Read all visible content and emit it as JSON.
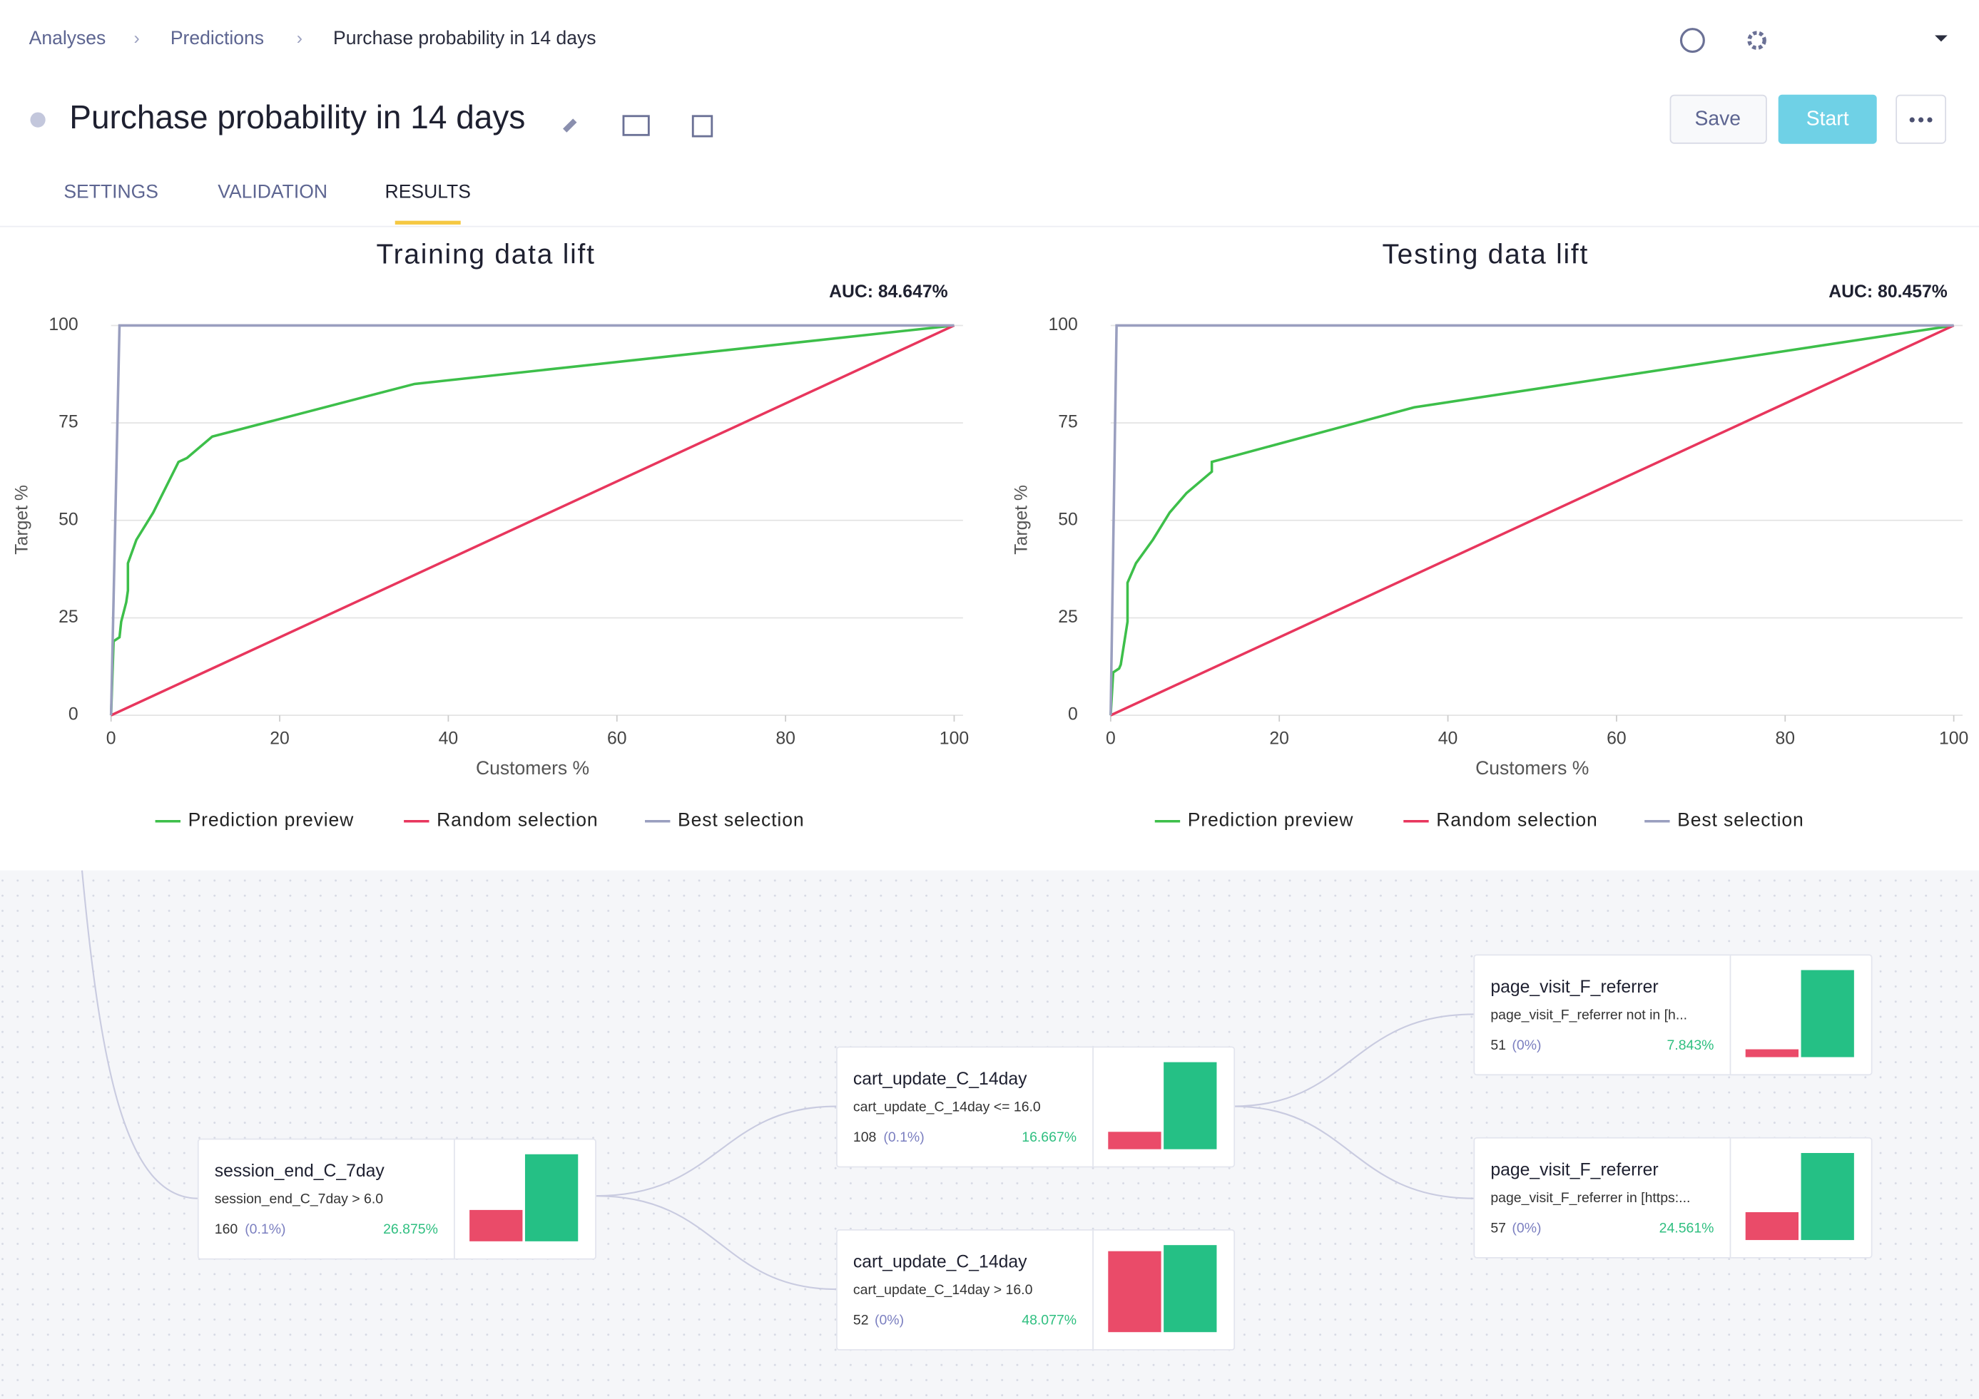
{
  "header": {
    "breadcrumbs": [
      "Analyses",
      "Predictions",
      "Purchase probability in 14 days"
    ],
    "title": "Purchase probability in 14 days",
    "buttons": {
      "save": "Save",
      "start": "Start"
    },
    "tabs": [
      "SETTINGS",
      "VALIDATION",
      "RESULTS"
    ]
  },
  "chart_data": [
    {
      "type": "line",
      "title": "Training data lift",
      "annotation": "AUC: 84.647%",
      "x_label": "Customers %",
      "y_label": "Target %",
      "xlim": [
        0,
        100
      ],
      "ylim": [
        0,
        100
      ],
      "xticks": [
        0,
        20,
        40,
        60,
        80,
        100
      ],
      "yticks": [
        0,
        25,
        50,
        75,
        100
      ],
      "grid": true,
      "series": [
        {
          "name": "Prediction preview",
          "color": "#3dbf4a",
          "x": [
            0,
            0.3,
            1,
            1.2,
            1.8,
            2,
            2,
            3,
            5,
            8,
            9,
            12,
            36,
            100
          ],
          "values": [
            0,
            19,
            20,
            24,
            29,
            32,
            39,
            45,
            52,
            65,
            66,
            71.5,
            85,
            100
          ]
        },
        {
          "name": "Random selection",
          "color": "#e8365d",
          "x": [
            0,
            100
          ],
          "values": [
            0,
            100
          ]
        },
        {
          "name": "Best selection",
          "color": "#9a9fbf",
          "x": [
            0,
            1,
            100
          ],
          "values": [
            0,
            100,
            100
          ]
        }
      ]
    },
    {
      "type": "line",
      "title": "Testing data lift",
      "annotation": "AUC: 80.457%",
      "x_label": "Customers %",
      "y_label": "Target %",
      "xlim": [
        0,
        100
      ],
      "ylim": [
        0,
        100
      ],
      "xticks": [
        0,
        20,
        40,
        60,
        80,
        100
      ],
      "yticks": [
        0,
        25,
        50,
        75,
        100
      ],
      "grid": true,
      "series": [
        {
          "name": "Prediction preview",
          "color": "#3dbf4a",
          "x": [
            0,
            0.3,
            1,
            1.2,
            2,
            2,
            3,
            5,
            7,
            9,
            12,
            12,
            36,
            100
          ],
          "values": [
            0,
            11,
            12,
            13,
            24,
            34,
            39,
            45,
            52,
            57,
            62.5,
            65,
            79,
            100
          ]
        },
        {
          "name": "Random selection",
          "color": "#e8365d",
          "x": [
            0,
            100
          ],
          "values": [
            0,
            100
          ]
        },
        {
          "name": "Best selection",
          "color": "#9a9fbf",
          "x": [
            0,
            0.7,
            100
          ],
          "values": [
            0,
            100,
            100
          ]
        }
      ]
    }
  ],
  "tree": {
    "nodes": [
      {
        "title": "session_end_C_7day",
        "condition": "session_end_C_7day > 6.0",
        "count": "160",
        "share": "(0.1%)",
        "rate": "26.875%",
        "bars": [
          36,
          100
        ]
      },
      {
        "title": "cart_update_C_14day",
        "condition": "cart_update_C_14day <= 16.0",
        "count": "108",
        "share": "(0.1%)",
        "rate": "16.667%",
        "bars": [
          20,
          100
        ]
      },
      {
        "title": "cart_update_C_14day",
        "condition": "cart_update_C_14day > 16.0",
        "count": "52",
        "share": "(0%)",
        "rate": "48.077%",
        "bars": [
          93,
          100
        ]
      },
      {
        "title": "page_visit_F_referrer",
        "condition": "page_visit_F_referrer not in [h...",
        "count": "51",
        "share": "(0%)",
        "rate": "7.843%",
        "bars": [
          9,
          100
        ]
      },
      {
        "title": "page_visit_F_referrer",
        "condition": "page_visit_F_referrer in [https:...",
        "count": "57",
        "share": "(0%)",
        "rate": "24.561%",
        "bars": [
          32,
          100
        ]
      }
    ]
  }
}
